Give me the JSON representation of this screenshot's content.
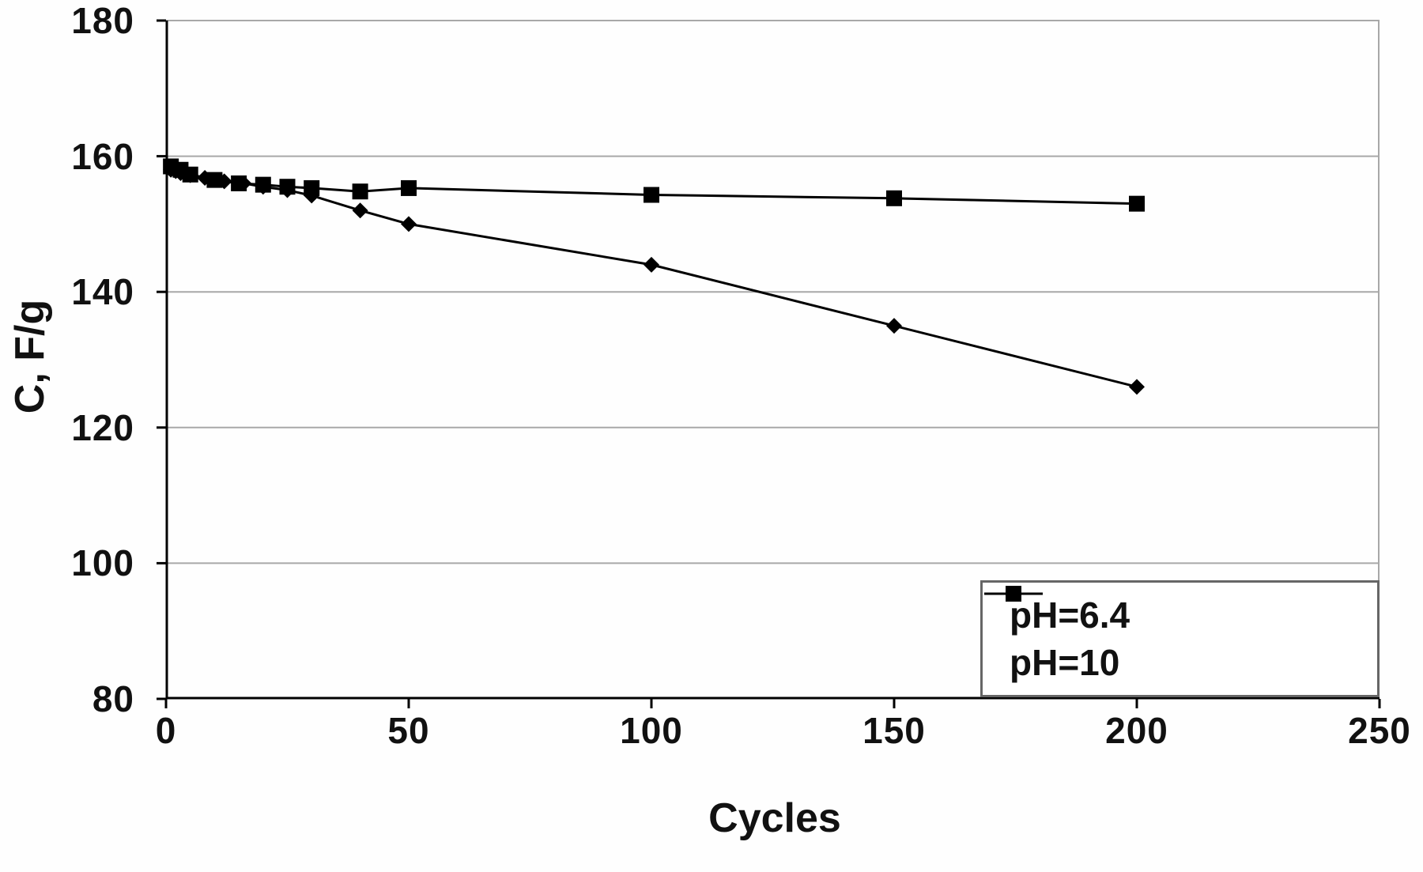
{
  "chart_data": {
    "type": "line",
    "title": "",
    "xlabel": "Cycles",
    "ylabel": "C, F/g",
    "xlim": [
      0,
      250
    ],
    "ylim": [
      80,
      180
    ],
    "xticks": [
      0,
      50,
      100,
      150,
      200,
      250
    ],
    "yticks": [
      80,
      100,
      120,
      140,
      160,
      180
    ],
    "grid": "horizontal",
    "grid_color": "#a8a8a8",
    "axis_color": "#000000",
    "legend_position": "bottom-right",
    "series": [
      {
        "name": "pH=6.4",
        "marker": "diamond",
        "color": "#000000",
        "x": [
          1,
          2,
          3,
          5,
          8,
          12,
          16,
          20,
          25,
          30,
          40,
          50,
          100,
          150,
          200
        ],
        "y": [
          158,
          157.8,
          157.5,
          157.2,
          156.8,
          156.3,
          156,
          155.5,
          155,
          154.2,
          152,
          150,
          144,
          135,
          126
        ]
      },
      {
        "name": "pH=10",
        "marker": "square",
        "color": "#000000",
        "x": [
          1,
          3,
          5,
          10,
          15,
          20,
          25,
          30,
          40,
          50,
          100,
          150,
          200
        ],
        "y": [
          158.5,
          158,
          157.3,
          156.5,
          156,
          155.8,
          155.5,
          155.3,
          154.8,
          155.3,
          154.3,
          153.8,
          153
        ]
      }
    ]
  }
}
